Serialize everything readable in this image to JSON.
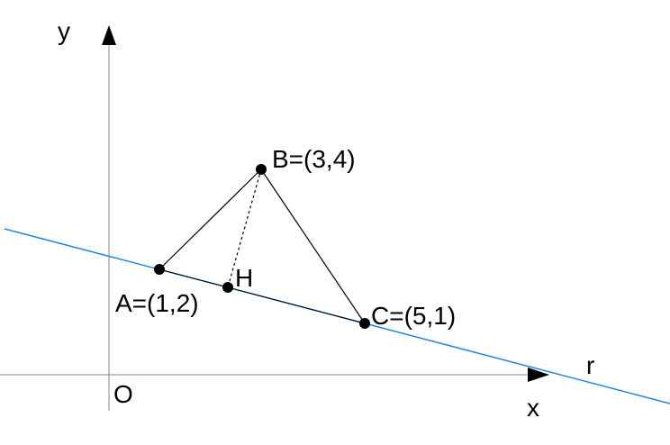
{
  "axes": {
    "y_label": "y",
    "x_label": "x",
    "origin_label": "O"
  },
  "line": {
    "label": "r"
  },
  "points": [
    {
      "label": "A=(1,2)"
    },
    {
      "label": "B=(3,4)"
    },
    {
      "label": "C=(5,1)"
    },
    {
      "label": "H"
    }
  ]
}
